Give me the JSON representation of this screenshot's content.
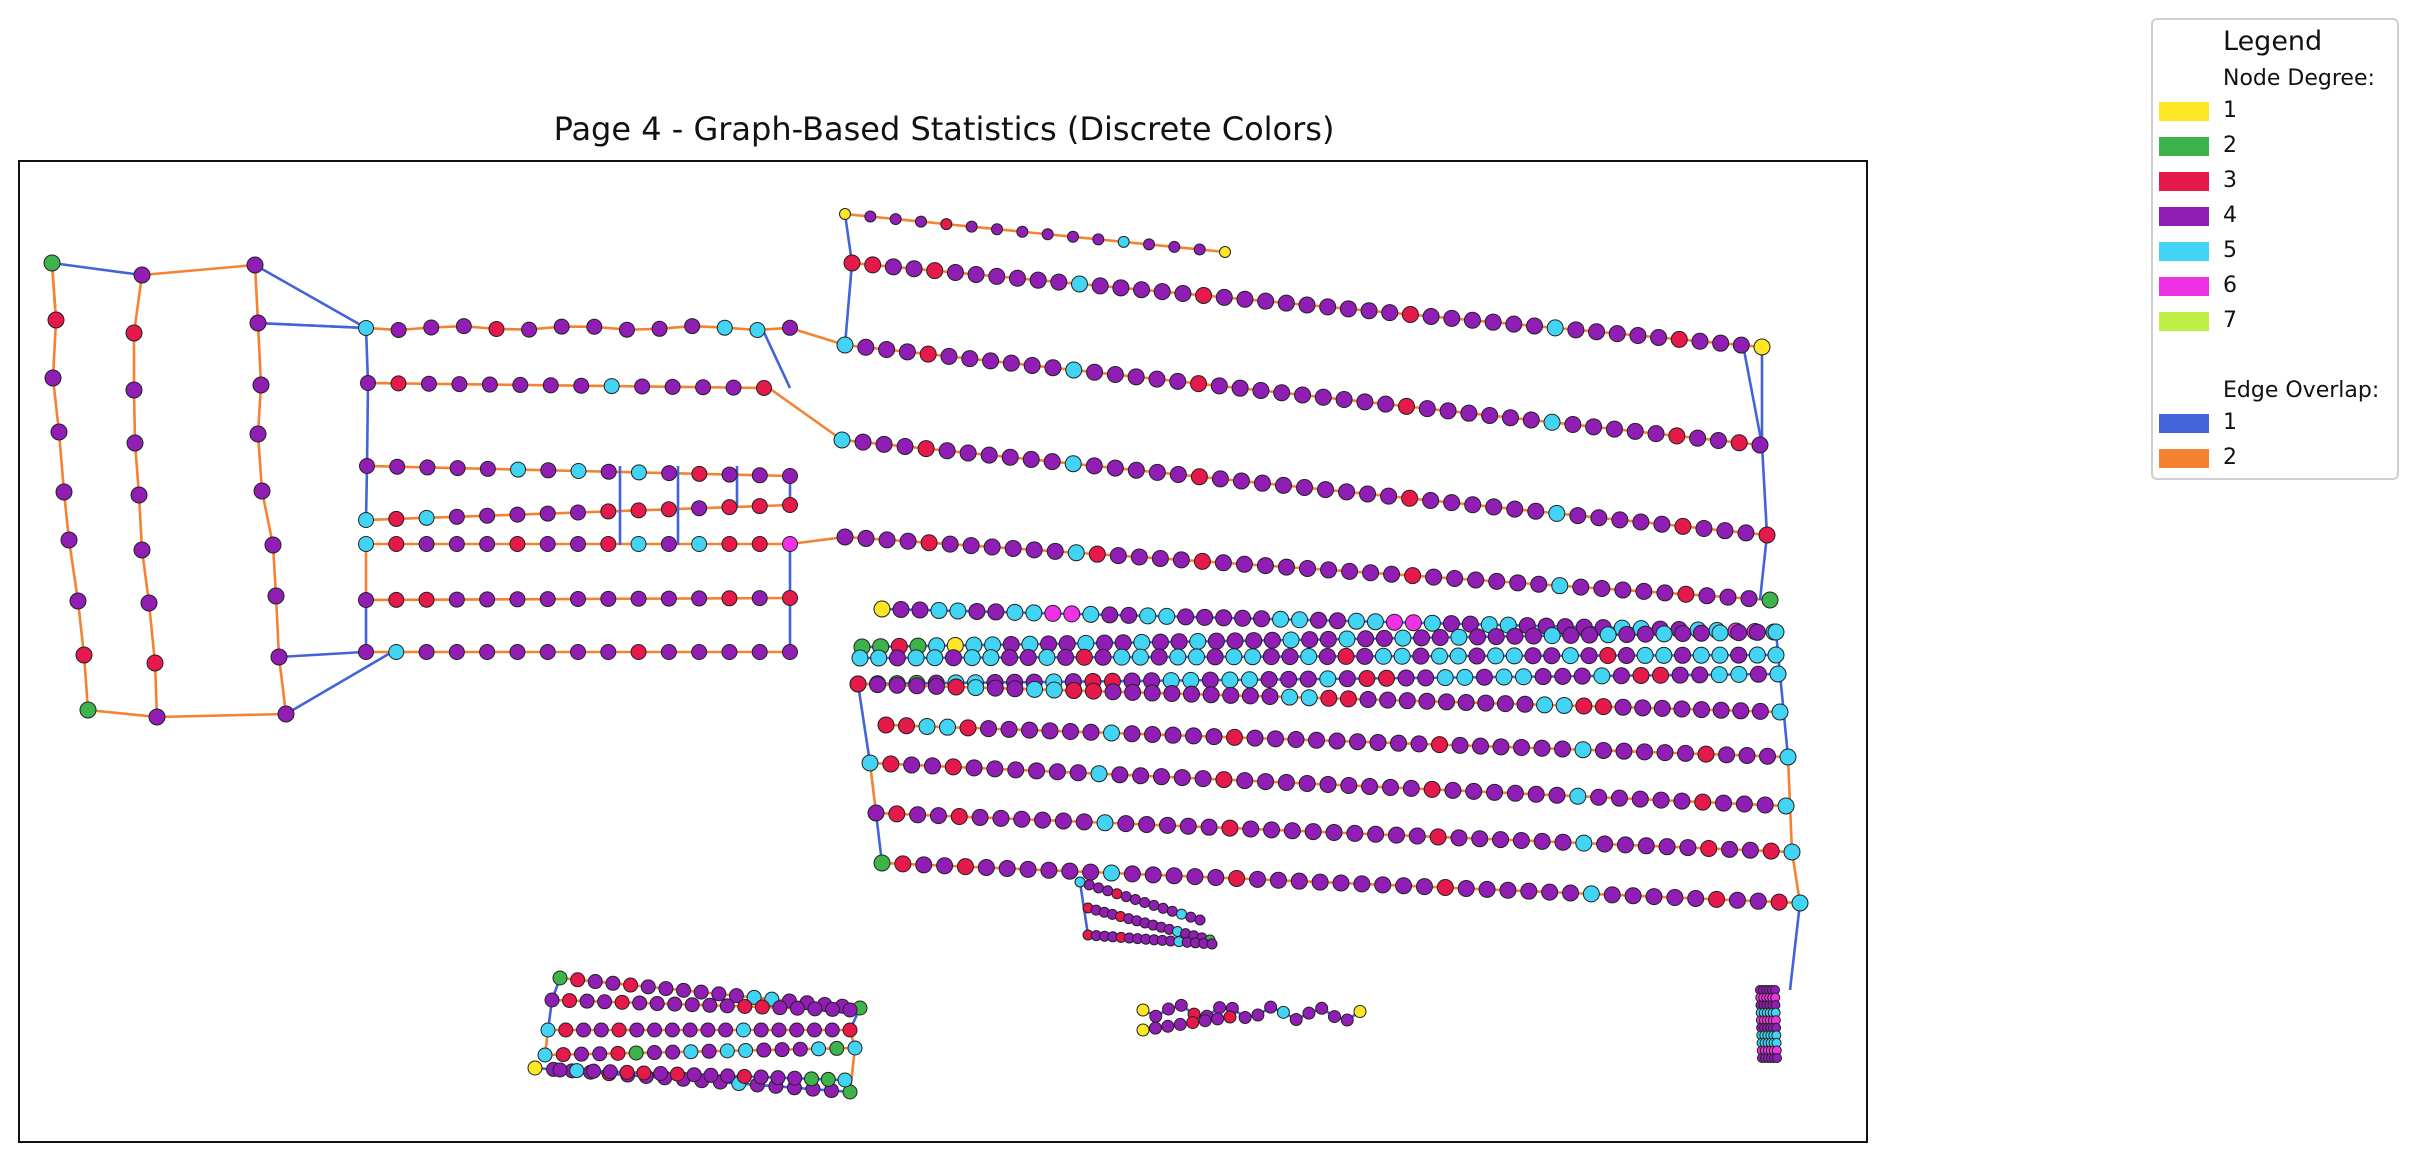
{
  "title": "Page 4 - Graph-Based Statistics (Discrete Colors)",
  "legend": {
    "title": "Legend",
    "node_degree_heading": "Node Degree:",
    "node_degree": [
      {
        "label": "1",
        "color": "#fde725"
      },
      {
        "label": "2",
        "color": "#3cb44b"
      },
      {
        "label": "3",
        "color": "#e6194b"
      },
      {
        "label": "4",
        "color": "#911eb4"
      },
      {
        "label": "5",
        "color": "#42d4f4"
      },
      {
        "label": "6",
        "color": "#f032e6"
      },
      {
        "label": "7",
        "color": "#bfef45"
      }
    ],
    "edge_overlap_heading": "Edge Overlap:",
    "edge_overlap": [
      {
        "label": "1",
        "color": "#4363d8"
      },
      {
        "label": "2",
        "color": "#f58231"
      }
    ]
  },
  "colors": {
    "degree": {
      "1": "#fde725",
      "2": "#3cb44b",
      "3": "#e6194b",
      "4": "#911eb4",
      "5": "#42d4f4",
      "6": "#f032e6",
      "7": "#bfef45"
    },
    "overlap": {
      "1": "#4363d8",
      "2": "#f58231"
    }
  }
}
